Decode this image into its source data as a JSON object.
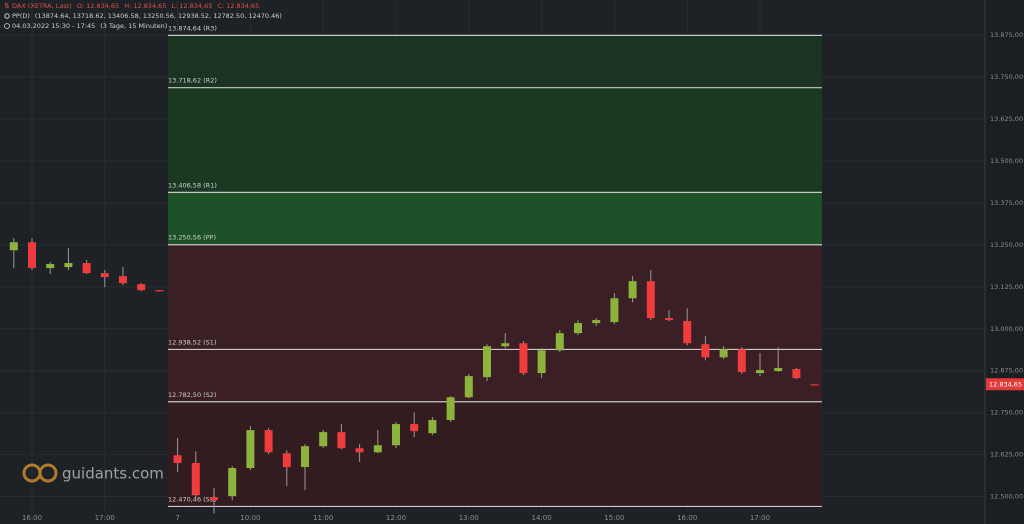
{
  "chart_data": {
    "type": "candlestick",
    "instrument": "DAX (XETRA, Last)",
    "ohlc_header": [
      "O: 12.834,65",
      "H: 12.834,65",
      "L: 12.834,65",
      "C: 12.834,65"
    ],
    "indicator": "PP(D)",
    "indicator_values": "(13874.64, 13718.62, 13406.58, 13250.56, 12938.52, 12782.50, 12470.46)",
    "range": "04.03.2022 15:30 - 17:45",
    "range_detail": "(3 Tage, 15 Minuten)",
    "watermark": "guidants.com",
    "categories": [
      null,
      "16:00",
      null,
      null,
      null,
      "17:00",
      null,
      null,
      null,
      "7",
      null,
      null,
      null,
      "10:00",
      null,
      null,
      null,
      "11:00",
      null,
      null,
      null,
      "12:00",
      null,
      null,
      null,
      "13:00",
      null,
      null,
      null,
      "14:00",
      null,
      null,
      null,
      "15:00",
      null,
      null,
      null,
      "16:00",
      null,
      null,
      null,
      "17:00",
      null,
      null,
      null
    ],
    "open": [
      13234,
      13258,
      13181,
      13184,
      13196,
      13166,
      13157,
      13133,
      13115,
      12623,
      12600,
      12498,
      12501,
      12585,
      12698,
      12629,
      12588,
      12650,
      12692,
      12644,
      12632,
      12653,
      12716,
      12689,
      12728,
      12796,
      12856,
      12948,
      12957,
      12868,
      12936,
      12987,
      13017,
      13020,
      13091,
      13142,
      13032,
      13023,
      12954,
      12915,
      12939,
      12868,
      12874,
      12880,
      12834.65
    ],
    "high": [
      13270,
      13270,
      13199,
      13240,
      13205,
      13175,
      13184,
      13136,
      13115,
      12674,
      12635,
      12525,
      12591,
      12710,
      12704,
      12638,
      12656,
      12698,
      12716,
      12656,
      12698,
      12722,
      12751,
      12737,
      12799,
      12865,
      12954,
      12987,
      12963,
      12942,
      12996,
      13026,
      13032,
      13106,
      13157,
      13175,
      13056,
      13061,
      12978,
      12948,
      12945,
      12927,
      12945,
      12883,
      12834.65
    ],
    "low": [
      13181,
      13175,
      13163,
      13175,
      13163,
      13124,
      13130,
      13112,
      13112,
      12573,
      12498,
      12450,
      12489,
      12579,
      12626,
      12531,
      12519,
      12644,
      12641,
      12603,
      12629,
      12644,
      12677,
      12683,
      12722,
      12793,
      12844,
      12942,
      12862,
      12853,
      12930,
      12981,
      13008,
      13014,
      13079,
      13026,
      13023,
      12951,
      12906,
      12910,
      12865,
      12859,
      12871,
      12850,
      12834.65
    ],
    "close": [
      13258,
      13181,
      13193,
      13196,
      13166,
      13154,
      13136,
      13115,
      13112,
      12600,
      12504,
      12489,
      12585,
      12698,
      12632,
      12588,
      12650,
      12692,
      12644,
      12632,
      12653,
      12716,
      12695,
      12728,
      12796,
      12859,
      12948,
      12957,
      12868,
      12936,
      12987,
      13017,
      13026,
      13091,
      13142,
      13032,
      13026,
      12957,
      12915,
      12939,
      12871,
      12877,
      12883,
      12853,
      12834.65
    ],
    "up_color": "#8db33a",
    "down_color": "#f03c3c",
    "ylim": [
      12442,
      13980
    ],
    "yticks": [
      {
        "value": 12500,
        "label": "12.500,00"
      },
      {
        "value": 12625,
        "label": "12.625,00"
      },
      {
        "value": 12750,
        "label": "12.750,00"
      },
      {
        "value": 12875,
        "label": "12.875,00"
      },
      {
        "value": 13000,
        "label": "13.000,00"
      },
      {
        "value": 13125,
        "label": "13.125,00"
      },
      {
        "value": 13250,
        "label": "13.250,00"
      },
      {
        "value": 13375,
        "label": "13.375,00"
      },
      {
        "value": 13500,
        "label": "13.500,00"
      },
      {
        "value": 13625,
        "label": "13.625,00"
      },
      {
        "value": 13750,
        "label": "13.750,00"
      },
      {
        "value": 13875,
        "label": "13.875,00"
      }
    ],
    "pivot_levels": [
      {
        "value": 13874.64,
        "label": "13.874,64 (R3)"
      },
      {
        "value": 13718.62,
        "label": "13.718,62 (R2)"
      },
      {
        "value": 13406.58,
        "label": "13.406,58 (R1)"
      },
      {
        "value": 13250.56,
        "label": "13.250,56 (PP)"
      },
      {
        "value": 12938.52,
        "label": "12.938,52 (S1)"
      },
      {
        "value": 12782.5,
        "label": "12.782,50 (S2)"
      },
      {
        "value": 12470.46,
        "label": "12.470,46 (S3)"
      }
    ],
    "zone_colors": [
      "#1a3421",
      "#1a3922",
      "#1d5228",
      "#3a1f24",
      "#3b1f24",
      "#331c20"
    ],
    "level_color": "#c9c9c9",
    "last_price": {
      "value": 12834.65,
      "label": "12.834,65"
    },
    "grid": true
  }
}
